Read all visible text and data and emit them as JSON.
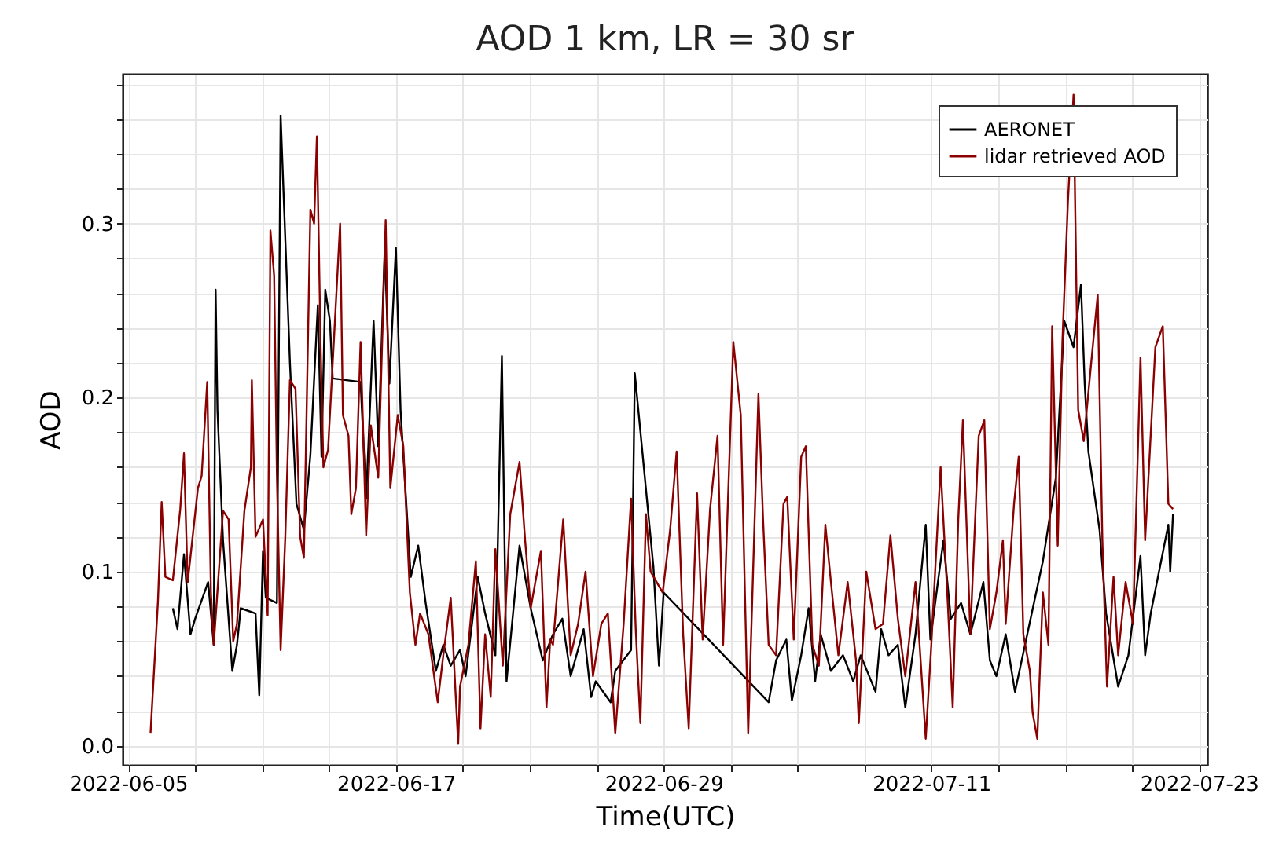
{
  "chart_data": {
    "type": "line",
    "title": "AOD 1 km, LR = 30 sr",
    "xlabel": "Time(UTC)",
    "ylabel": "AOD",
    "xlim": [
      "2022-06-04T18:00",
      "2022-07-23T09:00"
    ],
    "xticks": [
      "2022-06-05",
      {
        "value": "2022-06-08",
        "label": null
      },
      {
        "value": "2022-06-11",
        "label": null
      },
      {
        "value": "2022-06-14",
        "label": null
      },
      "2022-06-17",
      {
        "value": "2022-06-20",
        "label": null
      },
      {
        "value": "2022-06-23",
        "label": null
      },
      {
        "value": "2022-06-26",
        "label": null
      },
      "2022-06-29",
      {
        "value": "2022-07-02",
        "label": null
      },
      {
        "value": "2022-07-05",
        "label": null
      },
      {
        "value": "2022-07-08",
        "label": null
      },
      "2022-07-11",
      {
        "value": "2022-07-14",
        "label": null
      },
      {
        "value": "2022-07-17",
        "label": null
      },
      {
        "value": "2022-07-20",
        "label": null
      },
      "2022-07-23"
    ],
    "ylim": [
      -0.011,
      0.386
    ],
    "yticks": [
      {
        "value": 0,
        "label": "0.0"
      },
      {
        "value": 0.02,
        "label": null
      },
      {
        "value": 0.04,
        "label": null
      },
      {
        "value": 0.06,
        "label": null
      },
      {
        "value": 0.08,
        "label": null
      },
      0.1,
      {
        "value": 0.12,
        "label": null
      },
      {
        "value": 0.14,
        "label": null
      },
      {
        "value": 0.16,
        "label": null
      },
      {
        "value": 0.18,
        "label": null
      },
      0.2,
      {
        "value": 0.22,
        "label": null
      },
      {
        "value": 0.24,
        "label": null
      },
      {
        "value": 0.26,
        "label": null
      },
      {
        "value": 0.28,
        "label": null
      },
      0.3,
      {
        "value": 0.32,
        "label": null
      },
      {
        "value": 0.34,
        "label": null
      },
      {
        "value": 0.36,
        "label": null
      },
      {
        "value": 0.38,
        "label": null
      }
    ],
    "grid": true,
    "legend": "top right",
    "marker": "none",
    "line_style": "solid",
    "series": [
      {
        "name": "AERONET",
        "color": "#000000",
        "x": [
          "2022-06-07T00:00",
          "2022-06-07T05:00",
          "2022-06-07T12:00",
          "2022-06-07T19:00",
          "2022-06-08T00:00",
          "2022-06-08T14:00",
          "2022-06-08T20:00",
          "2022-06-08T22:00",
          "2022-06-09T00:00",
          "2022-06-09T06:00",
          "2022-06-09T16:00",
          "2022-06-09T21:00",
          "2022-06-10T01:00",
          "2022-06-10T17:00",
          "2022-06-10T21:00",
          "2022-06-11T01:00",
          "2022-06-11T04:00",
          "2022-06-11T16:00",
          "2022-06-11T20:00",
          "2022-06-12T06:00",
          "2022-06-12T13:00",
          "2022-06-12T21:00",
          "2022-06-13T04:00",
          "2022-06-13T12:00",
          "2022-06-13T16:00",
          "2022-06-13T20:00",
          "2022-06-14T01:00",
          "2022-06-14T04:00",
          "2022-06-15T10:00",
          "2022-06-15T16:00",
          "2022-06-16T00:00",
          "2022-06-16T05:00",
          "2022-06-16T12:00",
          "2022-06-16T17:00",
          "2022-06-17T00:00",
          "2022-06-17T05:00",
          "2022-06-17T16:00",
          "2022-06-18T00:00",
          "2022-06-18T08:00",
          "2022-06-18T19:00",
          "2022-06-19T03:00",
          "2022-06-19T11:00",
          "2022-06-19T21:00",
          "2022-06-20T03:00",
          "2022-06-20T16:00",
          "2022-06-21T00:00",
          "2022-06-21T11:00",
          "2022-06-21T18:00",
          "2022-06-21T23:00",
          "2022-06-22T13:00",
          "2022-06-23T01:00",
          "2022-06-23T14:00",
          "2022-06-24T01:00",
          "2022-06-24T11:00",
          "2022-06-24T20:00",
          "2022-06-25T10:00",
          "2022-06-25T18:00",
          "2022-06-25T23:00",
          "2022-06-26T15:00",
          "2022-06-26T20:00",
          "2022-06-27T13:00",
          "2022-06-27T17:00",
          "2022-06-28T13:00",
          "2022-06-28T19:00",
          "2022-06-29T00:00",
          "2022-07-03T17:00",
          "2022-07-04T01:00",
          "2022-07-04T12:00",
          "2022-07-04T18:00",
          "2022-07-05T04:00",
          "2022-07-05T12:00",
          "2022-07-05T19:00",
          "2022-07-06T01:00",
          "2022-07-06T12:00",
          "2022-07-07T01:00",
          "2022-07-07T12:00",
          "2022-07-07T20:00",
          "2022-07-08T12:00",
          "2022-07-08T18:00",
          "2022-07-09T02:00",
          "2022-07-09T12:00",
          "2022-07-09T20:00",
          "2022-07-10T07:00",
          "2022-07-10T18:00",
          "2022-07-10T23:00",
          "2022-07-11T13:00",
          "2022-07-11T21:00",
          "2022-07-12T08:00",
          "2022-07-12T18:00",
          "2022-07-13T08:00",
          "2022-07-13T15:00",
          "2022-07-13T22:00",
          "2022-07-14T08:00",
          "2022-07-14T18:00",
          "2022-07-16T00:00",
          "2022-07-16T14:00",
          "2022-07-16T23:00",
          "2022-07-17T09:00",
          "2022-07-17T17:00",
          "2022-07-17T21:00",
          "2022-07-18T01:00",
          "2022-07-18T13:00",
          "2022-07-18T20:00",
          "2022-07-19T09:00",
          "2022-07-19T20:00",
          "2022-07-20T09:00",
          "2022-07-20T14:00",
          "2022-07-20T20:00",
          "2022-07-21T15:00",
          "2022-07-21T17:00",
          "2022-07-21T20:00"
        ],
        "values": [
          0.079,
          0.067,
          0.11,
          0.064,
          0.073,
          0.094,
          0.058,
          0.262,
          0.193,
          0.118,
          0.043,
          0.058,
          0.079,
          0.076,
          0.029,
          0.112,
          0.085,
          0.082,
          0.362,
          0.22,
          0.139,
          0.124,
          0.167,
          0.253,
          0.166,
          0.262,
          0.244,
          0.211,
          0.209,
          0.142,
          0.244,
          0.172,
          0.286,
          0.208,
          0.286,
          0.193,
          0.097,
          0.115,
          0.082,
          0.043,
          0.058,
          0.046,
          0.055,
          0.04,
          0.097,
          0.076,
          0.052,
          0.224,
          0.037,
          0.115,
          0.079,
          0.049,
          0.064,
          0.073,
          0.04,
          0.067,
          0.028,
          0.037,
          0.025,
          0.043,
          0.055,
          0.214,
          0.103,
          0.046,
          0.088,
          0.025,
          0.049,
          0.061,
          0.026,
          0.052,
          0.079,
          0.037,
          0.064,
          0.043,
          0.052,
          0.037,
          0.052,
          0.031,
          0.067,
          0.052,
          0.058,
          0.022,
          0.064,
          0.127,
          0.061,
          0.118,
          0.073,
          0.082,
          0.064,
          0.094,
          0.049,
          0.04,
          0.064,
          0.031,
          0.106,
          0.154,
          0.244,
          0.229,
          0.265,
          0.208,
          0.169,
          0.124,
          0.076,
          0.034,
          0.052,
          0.109,
          0.052,
          0.076,
          0.127,
          0.1,
          0.133
        ]
      },
      {
        "name": "lidar retrieved AOD",
        "color": "#8b0000",
        "x": [
          "2022-06-06T00:00",
          "2022-06-06T08:00",
          "2022-06-06T12:00",
          "2022-06-06T16:00",
          "2022-06-07T00:00",
          "2022-06-07T08:00",
          "2022-06-07T12:00",
          "2022-06-07T16:00",
          "2022-06-08T03:00",
          "2022-06-08T07:00",
          "2022-06-08T13:00",
          "2022-06-08T17:00",
          "2022-06-08T20:00",
          "2022-06-09T06:00",
          "2022-06-09T12:00",
          "2022-06-09T17:00",
          "2022-06-09T21:00",
          "2022-06-10T05:00",
          "2022-06-10T12:00",
          "2022-06-10T13:00",
          "2022-06-10T17:00",
          "2022-06-11T01:00",
          "2022-06-11T06:00",
          "2022-06-11T09:00",
          "2022-06-11T13:00",
          "2022-06-11T16:00",
          "2022-06-11T20:00",
          "2022-06-12T01:00",
          "2022-06-12T06:00",
          "2022-06-12T12:00",
          "2022-06-12T17:00",
          "2022-06-12T21:00",
          "2022-06-13T04:00",
          "2022-06-13T08:00",
          "2022-06-13T11:00",
          "2022-06-13T15:00",
          "2022-06-13T18:00",
          "2022-06-13T23:00",
          "2022-06-14T07:00",
          "2022-06-14T12:00",
          "2022-06-14T15:00",
          "2022-06-14T21:00",
          "2022-06-15T00:00",
          "2022-06-15T05:00",
          "2022-06-15T10:00",
          "2022-06-15T16:00",
          "2022-06-15T21:00",
          "2022-06-16T05:00",
          "2022-06-16T13:00",
          "2022-06-16T18:00",
          "2022-06-17T02:00",
          "2022-06-17T08:00",
          "2022-06-17T15:00",
          "2022-06-17T21:00",
          "2022-06-18T02:00",
          "2022-06-18T11:00",
          "2022-06-18T21:00",
          "2022-06-19T03:00",
          "2022-06-19T11:00",
          "2022-06-19T19:00",
          "2022-06-19T21:00",
          "2022-06-20T06:00",
          "2022-06-20T14:00",
          "2022-06-20T19:00",
          "2022-06-21T00:00",
          "2022-06-21T06:00",
          "2022-06-21T11:00",
          "2022-06-21T19:00",
          "2022-06-22T03:00",
          "2022-06-22T13:00",
          "2022-06-22T19:00",
          "2022-06-23T01:00",
          "2022-06-23T12:00",
          "2022-06-23T18:00",
          "2022-06-23T22:00",
          "2022-06-24T01:00",
          "2022-06-24T12:00",
          "2022-06-24T20:00",
          "2022-06-25T04:00",
          "2022-06-25T12:00",
          "2022-06-25T20:00",
          "2022-06-26T05:00",
          "2022-06-26T12:00",
          "2022-06-26T20:00",
          "2022-06-27T05:00",
          "2022-06-27T13:00",
          "2022-06-27T18:00",
          "2022-06-27T23:00",
          "2022-06-28T05:00",
          "2022-06-28T10:00",
          "2022-06-28T23:00",
          "2022-06-29T07:00",
          "2022-06-29T14:00",
          "2022-06-29T21:00",
          "2022-06-30T03:00",
          "2022-06-30T12:00",
          "2022-06-30T18:00",
          "2022-07-01T02:00",
          "2022-07-01T10:00",
          "2022-07-01T16:00",
          "2022-07-02T03:00",
          "2022-07-02T11:00",
          "2022-07-02T19:00",
          "2022-07-03T06:00",
          "2022-07-03T11:00",
          "2022-07-03T17:00",
          "2022-07-04T01:00",
          "2022-07-04T09:00",
          "2022-07-04T13:00",
          "2022-07-04T20:00",
          "2022-07-05T04:00",
          "2022-07-05T09:00",
          "2022-07-05T16:00",
          "2022-07-05T23:00",
          "2022-07-06T06:00",
          "2022-07-06T12:00",
          "2022-07-06T20:00",
          "2022-07-07T06:00",
          "2022-07-07T15:00",
          "2022-07-07T18:00",
          "2022-07-08T02:00",
          "2022-07-08T12:00",
          "2022-07-08T20:00",
          "2022-07-09T04:00",
          "2022-07-09T12:00",
          "2022-07-09T20:00",
          "2022-07-10T07:00",
          "2022-07-10T18:00",
          "2022-07-11T00:00",
          "2022-07-11T10:00",
          "2022-07-11T18:00",
          "2022-07-11T23:00",
          "2022-07-12T05:00",
          "2022-07-12T10:00",
          "2022-07-12T18:00",
          "2022-07-12T21:00",
          "2022-07-13T03:00",
          "2022-07-13T09:00",
          "2022-07-13T15:00",
          "2022-07-13T22:00",
          "2022-07-14T05:00",
          "2022-07-14T08:00",
          "2022-07-14T17:00",
          "2022-07-14T22:00",
          "2022-07-15T03:00",
          "2022-07-15T10:00",
          "2022-07-15T13:00",
          "2022-07-15T18:00",
          "2022-07-16T00:00",
          "2022-07-16T06:00",
          "2022-07-16T10:00",
          "2022-07-16T16:00",
          "2022-07-16T21:00",
          "2022-07-17T03:00",
          "2022-07-17T09:00",
          "2022-07-17T14:00",
          "2022-07-17T20:00",
          "2022-07-18T04:00",
          "2022-07-18T11:00",
          "2022-07-18T16:00",
          "2022-07-18T21:00",
          "2022-07-19T04:00",
          "2022-07-19T09:00",
          "2022-07-19T17:00",
          "2022-07-20T01:00",
          "2022-07-20T09:00",
          "2022-07-20T14:00",
          "2022-07-21T01:00",
          "2022-07-21T09:00",
          "2022-07-21T15:00",
          "2022-07-21T20:00"
        ],
        "values": [
          0.007,
          0.083,
          0.14,
          0.097,
          0.095,
          0.136,
          0.168,
          0.094,
          0.148,
          0.155,
          0.209,
          0.088,
          0.058,
          0.135,
          0.13,
          0.06,
          0.07,
          0.135,
          0.16,
          0.21,
          0.12,
          0.13,
          0.075,
          0.296,
          0.27,
          0.155,
          0.055,
          0.12,
          0.21,
          0.205,
          0.12,
          0.108,
          0.308,
          0.3,
          0.35,
          0.23,
          0.16,
          0.17,
          0.25,
          0.3,
          0.19,
          0.178,
          0.133,
          0.148,
          0.232,
          0.121,
          0.184,
          0.154,
          0.302,
          0.148,
          0.19,
          0.172,
          0.088,
          0.058,
          0.076,
          0.064,
          0.025,
          0.052,
          0.085,
          0.001,
          0.034,
          0.058,
          0.106,
          0.01,
          0.064,
          0.028,
          0.113,
          0.046,
          0.133,
          0.163,
          0.118,
          0.079,
          0.112,
          0.022,
          0.061,
          0.058,
          0.13,
          0.052,
          0.07,
          0.1,
          0.04,
          0.07,
          0.076,
          0.007,
          0.07,
          0.142,
          0.067,
          0.013,
          0.133,
          0.1,
          0.088,
          0.124,
          0.169,
          0.064,
          0.01,
          0.145,
          0.061,
          0.136,
          0.178,
          0.058,
          0.232,
          0.19,
          0.007,
          0.202,
          0.13,
          0.058,
          0.052,
          0.139,
          0.143,
          0.061,
          0.166,
          0.172,
          0.058,
          0.046,
          0.127,
          0.094,
          0.052,
          0.094,
          0.049,
          0.013,
          0.1,
          0.067,
          0.07,
          0.121,
          0.073,
          0.04,
          0.094,
          0.004,
          0.058,
          0.16,
          0.079,
          0.022,
          0.13,
          0.187,
          0.064,
          0.103,
          0.178,
          0.187,
          0.067,
          0.088,
          0.118,
          0.07,
          0.139,
          0.166,
          0.064,
          0.043,
          0.019,
          0.004,
          0.088,
          0.058,
          0.241,
          0.115,
          0.232,
          0.313,
          0.374,
          0.193,
          0.175,
          0.22,
          0.259,
          0.118,
          0.034,
          0.097,
          0.052,
          0.094,
          0.07,
          0.223,
          0.118,
          0.229,
          0.241,
          0.139,
          0.136
        ]
      }
    ]
  }
}
